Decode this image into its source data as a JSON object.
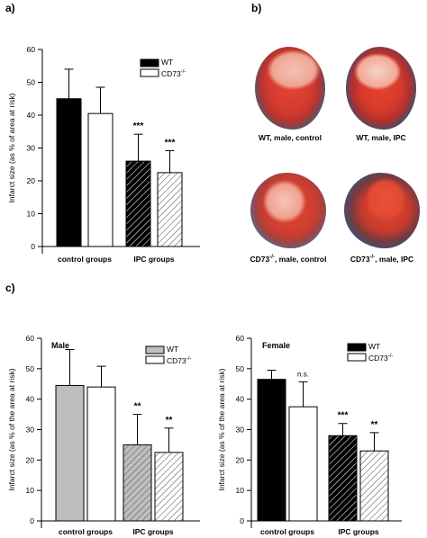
{
  "panels": {
    "a": "a)",
    "b": "b)",
    "c": "c)"
  },
  "colors": {
    "wt_black": "#000000",
    "wt_gray": "#bebebe",
    "cd73_white": "#ffffff",
    "heart_red": "#e03a2c",
    "heart_blue": "#3a4a66",
    "heart_pale": "#f0b7a6"
  },
  "chart_data": [
    {
      "id": "a",
      "type": "bar",
      "title": "",
      "ylabel": "Infarct size (as % of area at risk)",
      "ylim": [
        0,
        60
      ],
      "yticks": [
        0,
        10,
        20,
        30,
        40,
        50,
        60
      ],
      "groups": [
        "control groups",
        "IPC groups"
      ],
      "legend": [
        {
          "name": "WT",
          "fill": "black"
        },
        {
          "name_html": "CD73<sup>-/-</sup>",
          "name": "CD73-/-",
          "fill": "white"
        }
      ],
      "legend_position": "top-right",
      "bars": [
        {
          "group": "control groups",
          "series": "WT",
          "value": 45,
          "err": 9,
          "fill": "black",
          "label": ""
        },
        {
          "group": "control groups",
          "series": "CD73-/-",
          "value": 40.5,
          "err": 8,
          "fill": "white",
          "label": ""
        },
        {
          "group": "IPC groups",
          "series": "WT",
          "value": 26,
          "err": 8.2,
          "fill": "black-hatch",
          "label": "***"
        },
        {
          "group": "IPC groups",
          "series": "CD73-/-",
          "value": 22.5,
          "err": 6.7,
          "fill": "white-hatch",
          "label": "***"
        }
      ]
    },
    {
      "id": "c_male",
      "type": "bar",
      "title": "Male",
      "ylabel": "Infarct size (as % of the area at risk)",
      "ylim": [
        0,
        60
      ],
      "yticks": [
        0,
        10,
        20,
        30,
        40,
        50,
        60
      ],
      "groups": [
        "control groups",
        "IPC groups"
      ],
      "legend": [
        {
          "name": "WT",
          "fill": "gray"
        },
        {
          "name_html": "CD73<sup>-/-</sup>",
          "name": "CD73-/-",
          "fill": "white"
        }
      ],
      "legend_position": "top-right",
      "bars": [
        {
          "group": "control groups",
          "series": "WT",
          "value": 44.5,
          "err": 11.8,
          "fill": "gray",
          "label": ""
        },
        {
          "group": "control groups",
          "series": "CD73-/-",
          "value": 44,
          "err": 6.8,
          "fill": "white",
          "label": ""
        },
        {
          "group": "IPC groups",
          "series": "WT",
          "value": 25,
          "err": 10,
          "fill": "gray-hatch",
          "label": "**"
        },
        {
          "group": "IPC groups",
          "series": "CD73-/-",
          "value": 22.5,
          "err": 8,
          "fill": "white-hatch",
          "label": "**"
        }
      ]
    },
    {
      "id": "c_female",
      "type": "bar",
      "title": "Female",
      "ylabel": "Infarct size (as % of the area at risk)",
      "ylim": [
        0,
        60
      ],
      "yticks": [
        0,
        10,
        20,
        30,
        40,
        50,
        60
      ],
      "groups": [
        "control groups",
        "IPC groups"
      ],
      "legend": [
        {
          "name": "WT",
          "fill": "black"
        },
        {
          "name_html": "CD73<sup>-/-</sup>",
          "name": "CD73-/-",
          "fill": "white"
        }
      ],
      "legend_position": "top-right",
      "bars": [
        {
          "group": "control groups",
          "series": "WT",
          "value": 46.5,
          "err": 3,
          "fill": "black",
          "label": ""
        },
        {
          "group": "control groups",
          "series": "CD73-/-",
          "value": 37.5,
          "err": 8.2,
          "fill": "white",
          "label": "n.s."
        },
        {
          "group": "IPC groups",
          "series": "WT",
          "value": 28,
          "err": 4,
          "fill": "black-hatch",
          "label": "***"
        },
        {
          "group": "IPC groups",
          "series": "CD73-/-",
          "value": 23,
          "err": 6,
          "fill": "white-hatch",
          "label": "**"
        }
      ]
    }
  ],
  "hearts": [
    {
      "caption_html": "WT, male, control",
      "caption": "WT, male, control",
      "variant": "control"
    },
    {
      "caption_html": "WT, male, IPC",
      "caption": "WT, male, IPC",
      "variant": "ipc"
    },
    {
      "caption_html": "CD73<sup>-/-</sup>, male, control",
      "caption": "CD73-/-, male, control",
      "variant": "control2"
    },
    {
      "caption_html": "CD73<sup>-/-</sup>, male, IPC",
      "caption": "CD73-/-, male, IPC",
      "variant": "ipc2"
    }
  ]
}
